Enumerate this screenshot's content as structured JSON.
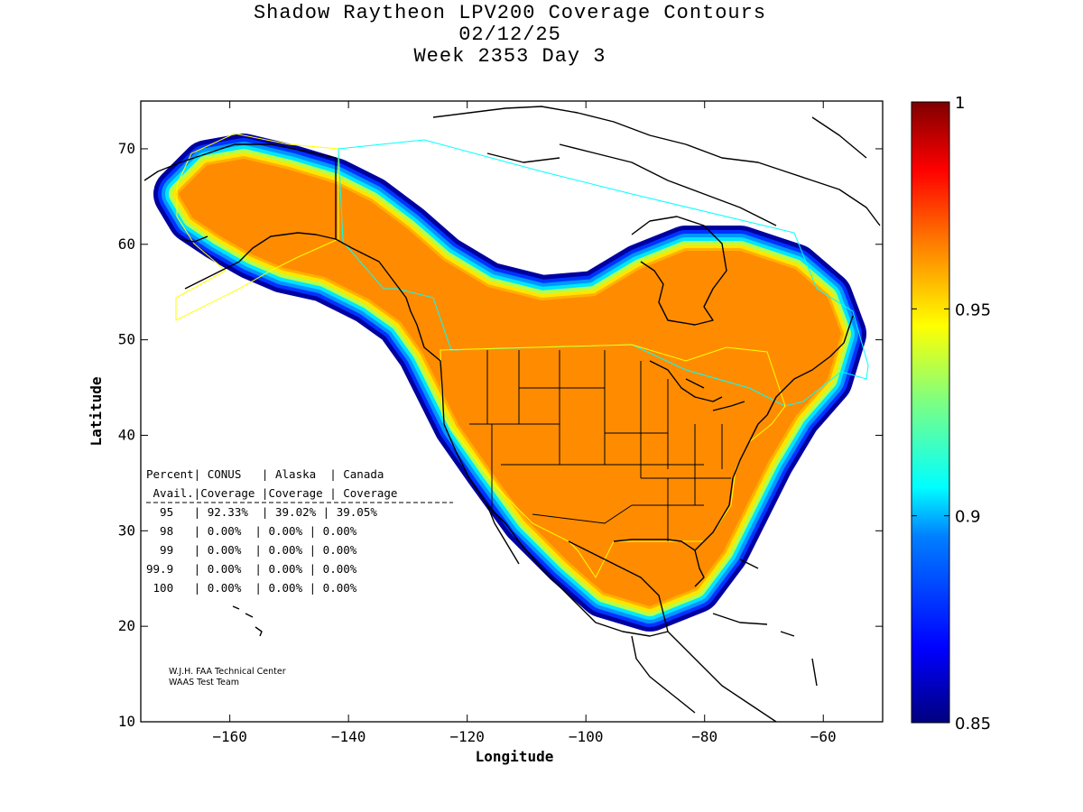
{
  "title": {
    "line1": "Shadow Raytheon LPV200 Coverage Contours",
    "line2": "02/12/25",
    "line3": "Week 2353 Day 3"
  },
  "axes": {
    "xlabel": "Longitude",
    "ylabel": "Latitude",
    "xlim": [
      -175,
      -50
    ],
    "ylim": [
      10,
      75
    ],
    "xticks": [
      -160,
      -140,
      -120,
      -100,
      -80,
      -60
    ],
    "yticks": [
      10,
      20,
      30,
      40,
      50,
      60,
      70
    ]
  },
  "colorbar": {
    "min": 0.85,
    "max": 1,
    "ticks": [
      "0.85",
      "0.9",
      "0.95",
      "1"
    ],
    "colors": [
      "#00007f",
      "#0000ff",
      "#007fff",
      "#00ffff",
      "#7fff7f",
      "#ffff00",
      "#ff7f00",
      "#ff0000",
      "#7f0000"
    ]
  },
  "stats": {
    "header1": "Percent| CONUS   | Alaska  | Canada",
    "header2": " Avail.|Coverage |Coverage | Coverage",
    "rows": [
      "  95   | 92.33%  | 39.02% | 39.05%",
      "  98   | 0.00%  | 0.00% | 0.00%",
      "  99   | 0.00%  | 0.00% | 0.00%",
      "99.9   | 0.00%  | 0.00% | 0.00%",
      " 100   | 0.00%  | 0.00% | 0.00%"
    ]
  },
  "credit": {
    "line1": "W.J.H. FAA Technical Center",
    "line2": "WAAS Test Team"
  },
  "colors": {
    "core": "#ff8c00",
    "orange_light": "#ffb000",
    "yellow": "#ffe600",
    "lime": "#b4ff4b",
    "cyan": "#00e6ff",
    "sky": "#0096ff",
    "blue": "#0032ff",
    "navy": "#0000a0",
    "boundary_yellow": "#ffff00",
    "boundary_cyan": "#00ffff"
  }
}
